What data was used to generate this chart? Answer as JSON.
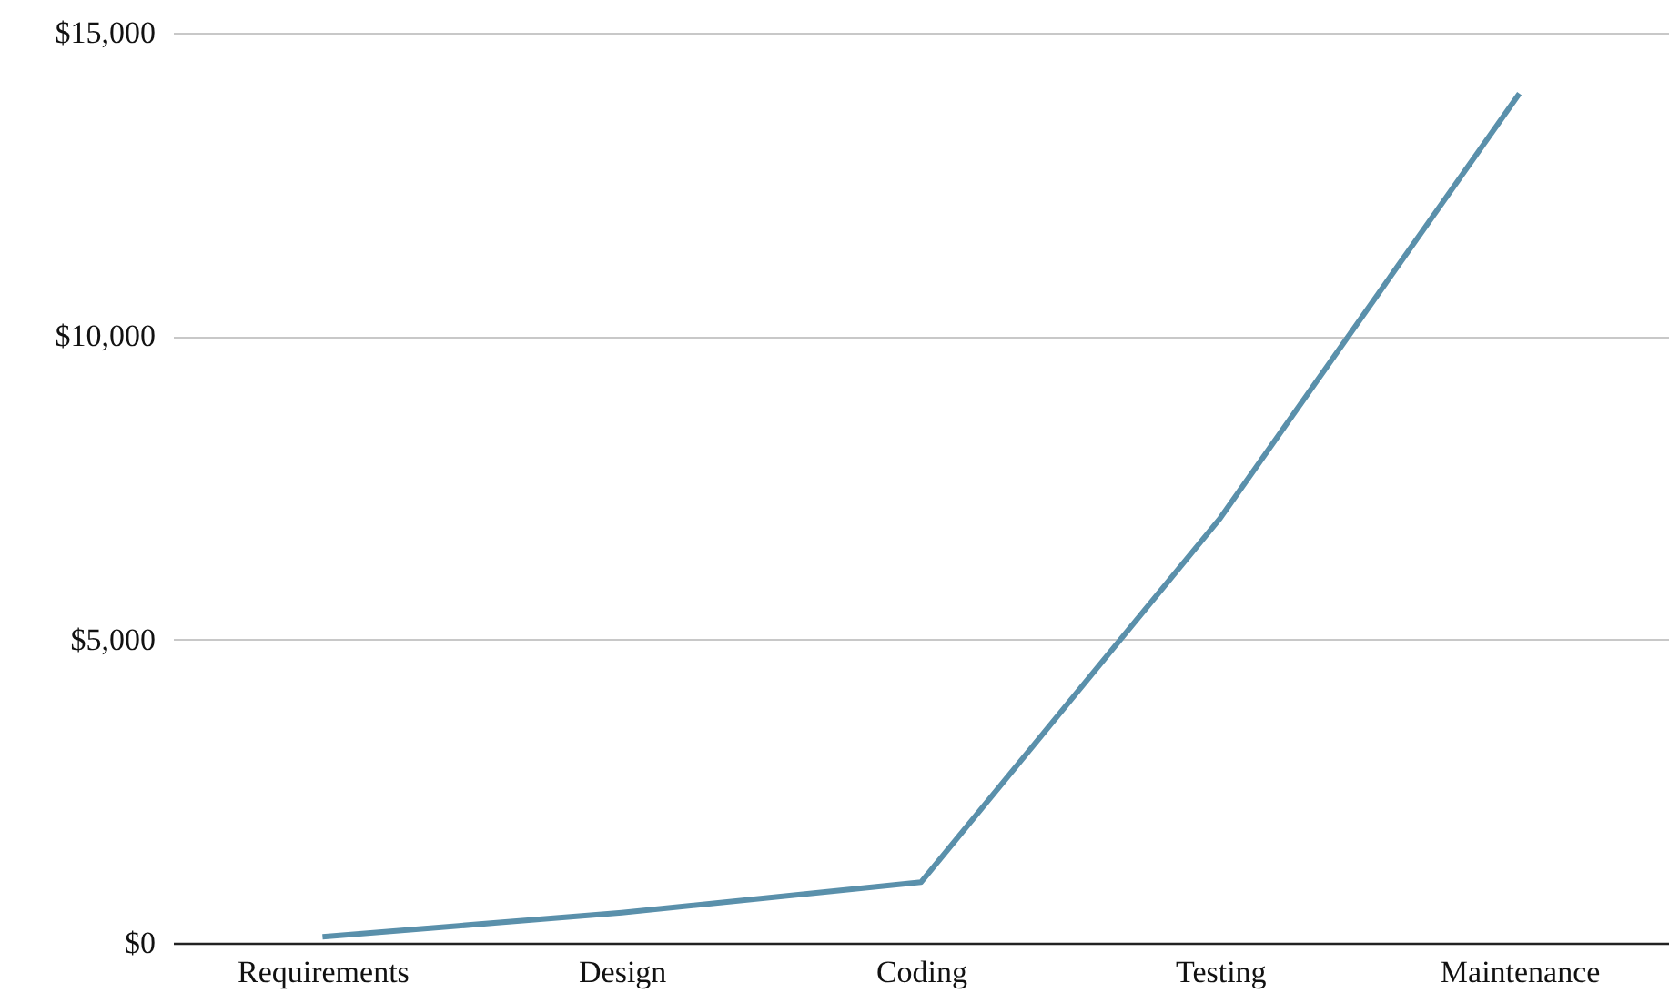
{
  "chart_data": {
    "type": "line",
    "categories": [
      "Requirements",
      "Design",
      "Coding",
      "Testing",
      "Maintenance"
    ],
    "series": [
      {
        "color": "#5a90ab",
        "values": [
          100,
          500,
          1000,
          7000,
          14000
        ]
      }
    ],
    "ylim": [
      0,
      15000
    ],
    "yticks": [
      {
        "value": 0,
        "label": "$0"
      },
      {
        "value": 5000,
        "label": "$5,000"
      },
      {
        "value": 10000,
        "label": "$10,000"
      },
      {
        "value": 15000,
        "label": "$15,000"
      }
    ],
    "grid": "y",
    "marker": "none",
    "line_style": "solid"
  }
}
